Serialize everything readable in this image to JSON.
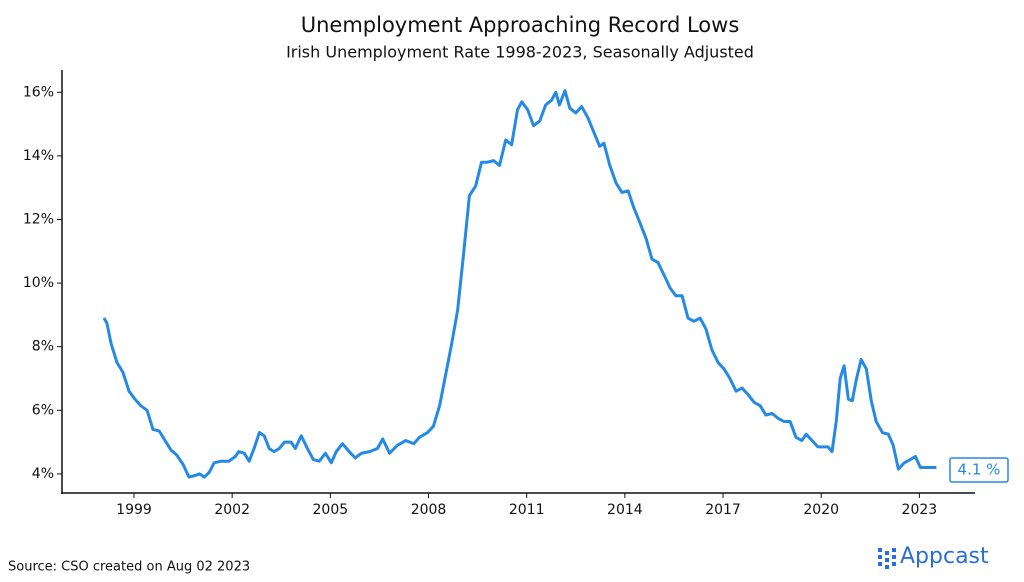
{
  "chart_data": {
    "type": "line",
    "title": "Unemployment Approaching Record Lows",
    "subtitle": "Irish Unemployment Rate 1998-2023, Seasonally Adjusted",
    "annotation": "4.1 %",
    "source": "Source: CSO created on Aug 02 2023",
    "brand": "Appcast",
    "xlim": [
      1996.8,
      2024.7
    ],
    "xticks": [
      1999,
      2002,
      2005,
      2008,
      2011,
      2014,
      2017,
      2020,
      2023
    ],
    "ylim": [
      3.4,
      16.7
    ],
    "yticks": [
      {
        "value": 4,
        "label": "4%"
      },
      {
        "value": 6,
        "label": "6%"
      },
      {
        "value": 8,
        "label": "8%"
      },
      {
        "value": 10,
        "label": "10%"
      },
      {
        "value": 12,
        "label": "12%"
      },
      {
        "value": 14,
        "label": "14%"
      },
      {
        "value": 16,
        "label": "16%"
      }
    ],
    "grid": false,
    "x": [
      1998.08,
      1998.17,
      1998.3,
      1998.48,
      1998.66,
      1998.85,
      1999.03,
      1999.2,
      1999.4,
      1999.58,
      1999.77,
      1999.95,
      2000.13,
      2000.3,
      2000.5,
      2000.68,
      2000.87,
      2001.0,
      2001.15,
      2001.3,
      2001.45,
      2001.66,
      2001.9,
      2002.1,
      2002.2,
      2002.37,
      2002.52,
      2002.67,
      2002.83,
      2002.98,
      2003.13,
      2003.28,
      2003.44,
      2003.6,
      2003.8,
      2003.93,
      2004.11,
      2004.3,
      2004.48,
      2004.66,
      2004.85,
      2005.03,
      2005.18,
      2005.37,
      2005.58,
      2005.76,
      2005.95,
      2006.2,
      2006.44,
      2006.6,
      2006.81,
      2007.05,
      2007.3,
      2007.55,
      2007.72,
      2007.97,
      2008.15,
      2008.34,
      2008.52,
      2008.7,
      2008.89,
      2009.07,
      2009.25,
      2009.44,
      2009.62,
      2009.8,
      2009.99,
      2010.17,
      2010.36,
      2010.54,
      2010.72,
      2010.85,
      2011.03,
      2011.21,
      2011.4,
      2011.58,
      2011.76,
      2011.89,
      2012.0,
      2012.17,
      2012.32,
      2012.5,
      2012.68,
      2012.87,
      2013.05,
      2013.23,
      2013.36,
      2013.54,
      2013.73,
      2013.91,
      2014.1,
      2014.28,
      2014.46,
      2014.65,
      2014.83,
      2015.01,
      2015.2,
      2015.38,
      2015.56,
      2015.75,
      2015.93,
      2016.11,
      2016.3,
      2016.48,
      2016.66,
      2016.85,
      2017.03,
      2017.21,
      2017.4,
      2017.58,
      2017.76,
      2017.95,
      2018.13,
      2018.31,
      2018.5,
      2018.68,
      2018.86,
      2019.05,
      2019.23,
      2019.41,
      2019.54,
      2019.72,
      2019.9,
      2020.09,
      2020.21,
      2020.33,
      2020.46,
      2020.58,
      2020.7,
      2020.83,
      2020.95,
      2021.07,
      2021.22,
      2021.38,
      2021.53,
      2021.68,
      2021.87,
      2022.05,
      2022.2,
      2022.36,
      2022.54,
      2022.72,
      2022.88,
      2023.03,
      2023.21,
      2023.4,
      2023.52
    ],
    "series": [
      {
        "name": "Unemployment rate",
        "color": "#2589e6",
        "values": [
          8.9,
          8.75,
          8.1,
          7.5,
          7.2,
          6.6,
          6.35,
          6.15,
          6.0,
          5.4,
          5.35,
          5.05,
          4.75,
          4.6,
          4.3,
          3.9,
          3.95,
          4.0,
          3.9,
          4.05,
          4.35,
          4.4,
          4.4,
          4.55,
          4.7,
          4.65,
          4.4,
          4.8,
          5.3,
          5.2,
          4.8,
          4.7,
          4.8,
          5.0,
          5.0,
          4.8,
          5.2,
          4.8,
          4.45,
          4.4,
          4.65,
          4.35,
          4.7,
          4.95,
          4.7,
          4.5,
          4.65,
          4.7,
          4.8,
          5.1,
          4.65,
          4.9,
          5.05,
          4.95,
          5.15,
          5.3,
          5.5,
          6.15,
          7.1,
          8.05,
          9.15,
          10.9,
          12.75,
          13.05,
          13.8,
          13.8,
          13.85,
          13.7,
          14.5,
          14.35,
          15.45,
          15.7,
          15.45,
          14.95,
          15.1,
          15.6,
          15.75,
          16.0,
          15.6,
          16.05,
          15.5,
          15.35,
          15.55,
          15.2,
          14.75,
          14.3,
          14.4,
          13.7,
          13.15,
          12.85,
          12.9,
          12.35,
          11.9,
          11.4,
          10.75,
          10.65,
          10.25,
          9.85,
          9.6,
          9.6,
          8.9,
          8.8,
          8.9,
          8.55,
          7.9,
          7.5,
          7.3,
          7.0,
          6.6,
          6.7,
          6.5,
          6.25,
          6.15,
          5.85,
          5.9,
          5.75,
          5.65,
          5.65,
          5.15,
          5.05,
          5.25,
          5.05,
          4.85,
          4.85,
          4.85,
          4.7,
          5.65,
          7.0,
          7.4,
          6.35,
          6.3,
          6.95,
          7.6,
          7.3,
          6.3,
          5.65,
          5.3,
          5.25,
          4.9,
          4.15,
          4.35,
          4.45,
          4.55,
          4.2,
          4.2,
          4.2,
          4.2
        ]
      }
    ]
  }
}
